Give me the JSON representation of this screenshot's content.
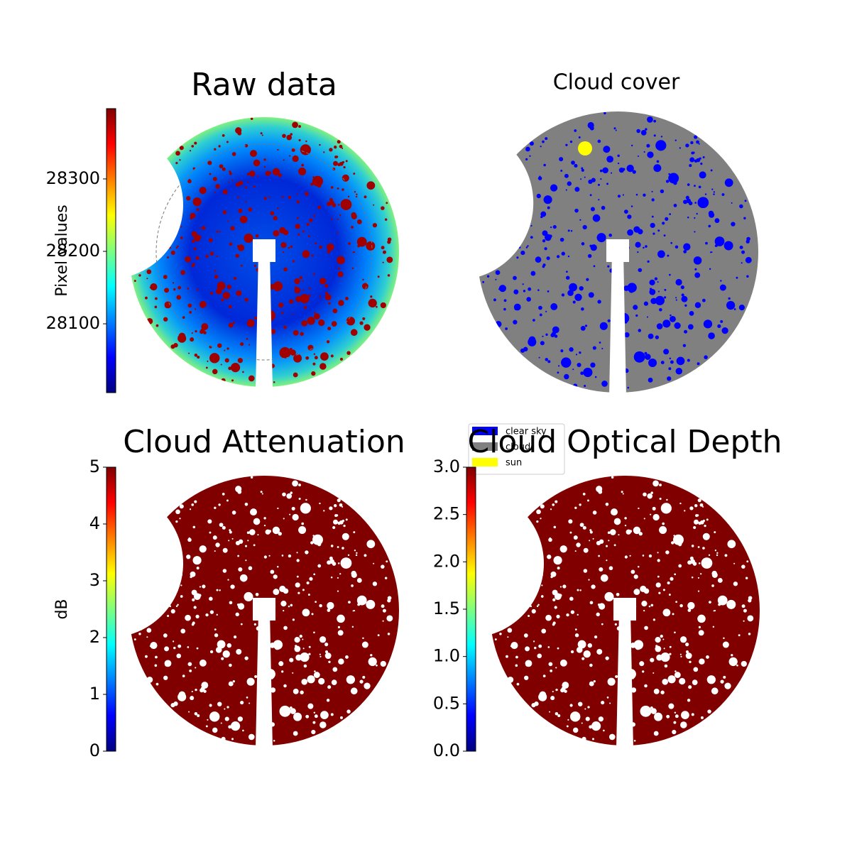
{
  "chart_data": [
    {
      "type": "image",
      "title": "Raw data",
      "colorbar_label": "Pixel values",
      "clim": [
        28005,
        28397
      ],
      "cticks": [
        28100,
        28200,
        28300
      ],
      "colormap": "jet"
    },
    {
      "type": "image",
      "title": "Cloud cover",
      "legend": [
        {
          "name": "clear sky",
          "color": "#0000ff"
        },
        {
          "name": "cloud",
          "color": "#808080"
        },
        {
          "name": "sun",
          "color": "#ffff00"
        }
      ]
    },
    {
      "type": "image",
      "title": "Cloud Attenuation",
      "colorbar_label": "dB",
      "clim": [
        0,
        5
      ],
      "cticks": [
        0,
        1,
        2,
        3,
        4,
        5
      ],
      "colormap": "jet"
    },
    {
      "type": "image",
      "title": "Cloud Optical Depth",
      "clim": [
        0,
        3
      ],
      "cticks": [
        {
          "value": 0,
          "label": "0.0"
        },
        {
          "value": 0.5,
          "label": "0.5"
        },
        {
          "value": 1,
          "label": "1.0"
        },
        {
          "value": 1.5,
          "label": "1.5"
        },
        {
          "value": 2,
          "label": "2.0"
        },
        {
          "value": 2.5,
          "label": "2.5"
        },
        {
          "value": 3,
          "label": "3.0"
        }
      ],
      "colormap": "jet"
    }
  ]
}
